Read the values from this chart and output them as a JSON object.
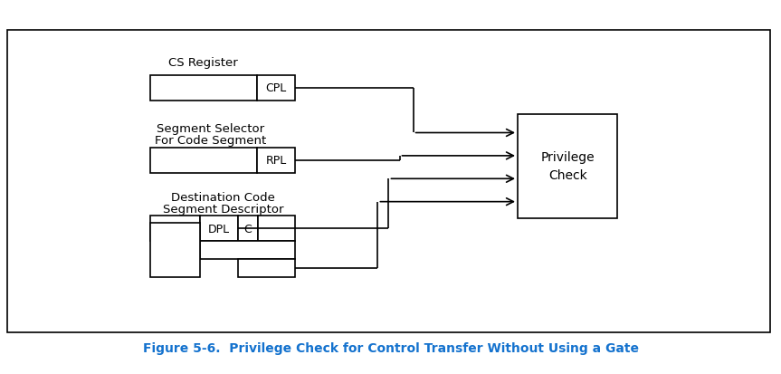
{
  "title": "Figure 5-6.  Privilege Check for Control Transfer Without Using a Gate",
  "title_color": "#1472CE",
  "bg_color": "#ffffff",
  "ec": "#000000",
  "cs_register_label": "CS Register",
  "ss_label1": "Segment Selector",
  "ss_label2": "For Code Segment",
  "dest_label1": "Destination Code",
  "dest_label2": "Segment Descriptor",
  "cpl_label": "CPL",
  "rpl_label": "RPL",
  "dpl_label": "DPL",
  "c_label": "C",
  "priv_label1": "Privilege",
  "priv_label2": "Check"
}
